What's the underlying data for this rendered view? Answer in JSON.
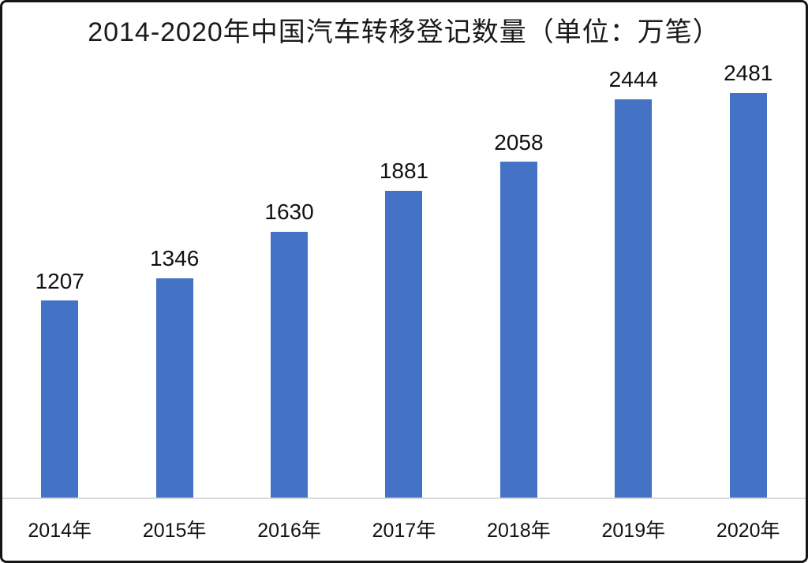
{
  "chart_data": {
    "type": "bar",
    "title": "2014-2020年中国汽车转移登记数量（单位：万笔）",
    "categories": [
      "2014年",
      "2015年",
      "2016年",
      "2017年",
      "2018年",
      "2019年",
      "2020年"
    ],
    "values": [
      1207,
      1346,
      1630,
      1881,
      2058,
      2444,
      2481
    ],
    "data_labels": true,
    "grid": false,
    "legend": "none",
    "xlabel": "",
    "ylabel": "",
    "ylim": [
      0,
      2500
    ],
    "bar_color": "#4472c4",
    "axis_line_color": "#d9d9d9",
    "text_color": "#1a1a1a",
    "background": "#ffffff"
  }
}
